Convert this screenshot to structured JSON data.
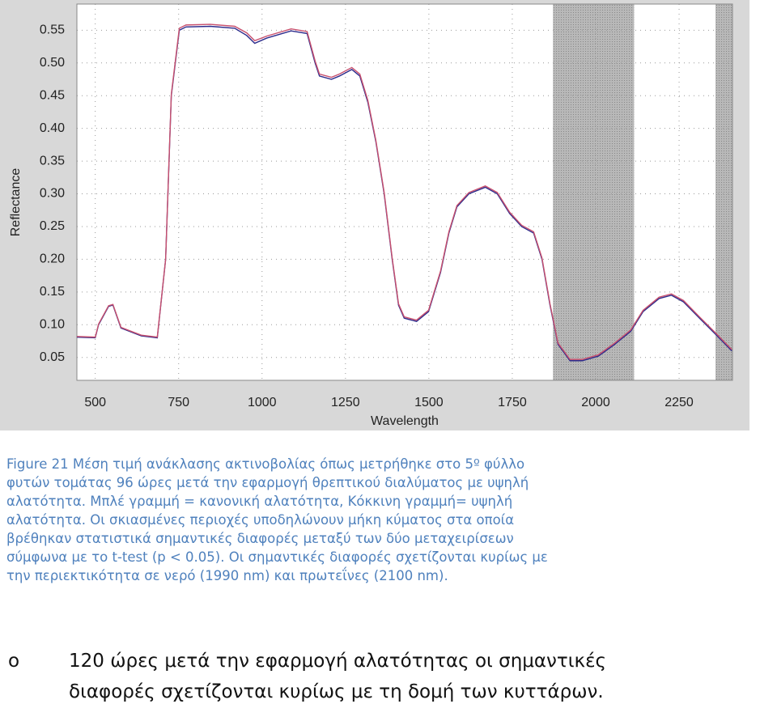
{
  "chart_data": {
    "type": "line",
    "x_label": "Wavelength",
    "y_label": "Reflectance",
    "xlim": [
      445,
      2410
    ],
    "ylim": [
      0.015,
      0.59
    ],
    "xticks": [
      500,
      750,
      1000,
      1250,
      1500,
      1750,
      2000,
      2250
    ],
    "yticks": [
      0.05,
      {
        "value": 0.1,
        "label": "0.10"
      },
      0.15,
      {
        "value": 0.2,
        "label": "0.20"
      },
      0.25,
      {
        "value": 0.3,
        "label": "0.30"
      },
      0.35,
      {
        "value": 0.4,
        "label": "0.40"
      },
      0.45,
      {
        "value": 0.5,
        "label": "0.50"
      },
      0.55
    ],
    "grid": true,
    "shaded_regions": [
      [
        1872,
        2115
      ],
      [
        2359,
        2410
      ]
    ],
    "x": [
      445,
      500,
      510,
      540,
      553,
      577,
      602,
      638,
      686,
      711,
      728,
      752,
      772,
      845,
      918,
      954,
      978,
      1014,
      1087,
      1135,
      1159,
      1172,
      1208,
      1232,
      1269,
      1293,
      1317,
      1341,
      1366,
      1390,
      1409,
      1426,
      1463,
      1499,
      1535,
      1560,
      1584,
      1620,
      1669,
      1705,
      1742,
      1778,
      1814,
      1839,
      1863,
      1887,
      1923,
      1960,
      2008,
      2057,
      2105,
      2142,
      2190,
      2227,
      2263,
      2311,
      2360,
      2408
    ],
    "series": [
      {
        "name": "Κανονική αλατότητα",
        "color": "#2b2b8c",
        "values": [
          0.081,
          0.08,
          0.1,
          0.128,
          0.13,
          0.095,
          0.09,
          0.083,
          0.08,
          0.2,
          0.45,
          0.55,
          0.555,
          0.556,
          0.553,
          0.542,
          0.53,
          0.538,
          0.549,
          0.545,
          0.5,
          0.48,
          0.475,
          0.48,
          0.49,
          0.48,
          0.44,
          0.38,
          0.3,
          0.2,
          0.13,
          0.11,
          0.105,
          0.12,
          0.18,
          0.24,
          0.28,
          0.3,
          0.31,
          0.3,
          0.27,
          0.25,
          0.24,
          0.2,
          0.13,
          0.07,
          0.045,
          0.045,
          0.052,
          0.07,
          0.09,
          0.12,
          0.14,
          0.145,
          0.135,
          0.11,
          0.085,
          0.06
        ]
      },
      {
        "name": "Υψηλή αλατότητα",
        "color": "#c8506e",
        "values": [
          0.082,
          0.081,
          0.101,
          0.129,
          0.131,
          0.096,
          0.091,
          0.084,
          0.081,
          0.2,
          0.452,
          0.553,
          0.558,
          0.559,
          0.556,
          0.546,
          0.534,
          0.541,
          0.552,
          0.548,
          0.503,
          0.483,
          0.478,
          0.483,
          0.493,
          0.483,
          0.443,
          0.382,
          0.302,
          0.202,
          0.132,
          0.112,
          0.107,
          0.122,
          0.182,
          0.242,
          0.282,
          0.302,
          0.312,
          0.302,
          0.272,
          0.252,
          0.242,
          0.202,
          0.132,
          0.072,
          0.047,
          0.047,
          0.054,
          0.072,
          0.092,
          0.122,
          0.142,
          0.147,
          0.137,
          0.112,
          0.087,
          0.062
        ]
      }
    ]
  },
  "caption": {
    "lines": [
      "Figure 21 Μέση τιμή ανάκλασης ακτινοβολίας όπως μετρήθηκε στο 5º φύλλο",
      "φυτών τομάτας 96 ώρες μετά την εφαρμογή θρεπτικού διαλύματος με υψηλή",
      "αλατότητα. Μπλέ γραμμή = κανονική αλατότητα, Κόκκινη γραμμή= υψηλή",
      "αλατότητα. Οι σκιασμένες περιοχές υποδηλώνουν μήκη κύματος στα οποία",
      "βρέθηκαν στατιστικά σημαντικές διαφορές μεταξύ των δύο μεταχειρίσεων",
      "σύμφωνα με το t-test (p < 0.05). Οι σημαντικές διαφορές σχετίζονται κυρίως με",
      "την περιεκτικότητα σε νερό (1990 nm) και πρωτεΐνες (2100 nm)."
    ]
  },
  "bullet": {
    "marker": "o",
    "lines": [
      "120 ώρες μετά την εφαρμογή αλατότητας οι σημαντικές",
      "διαφορές σχετίζονται κυρίως με τη δομή των κυττάρων."
    ]
  }
}
